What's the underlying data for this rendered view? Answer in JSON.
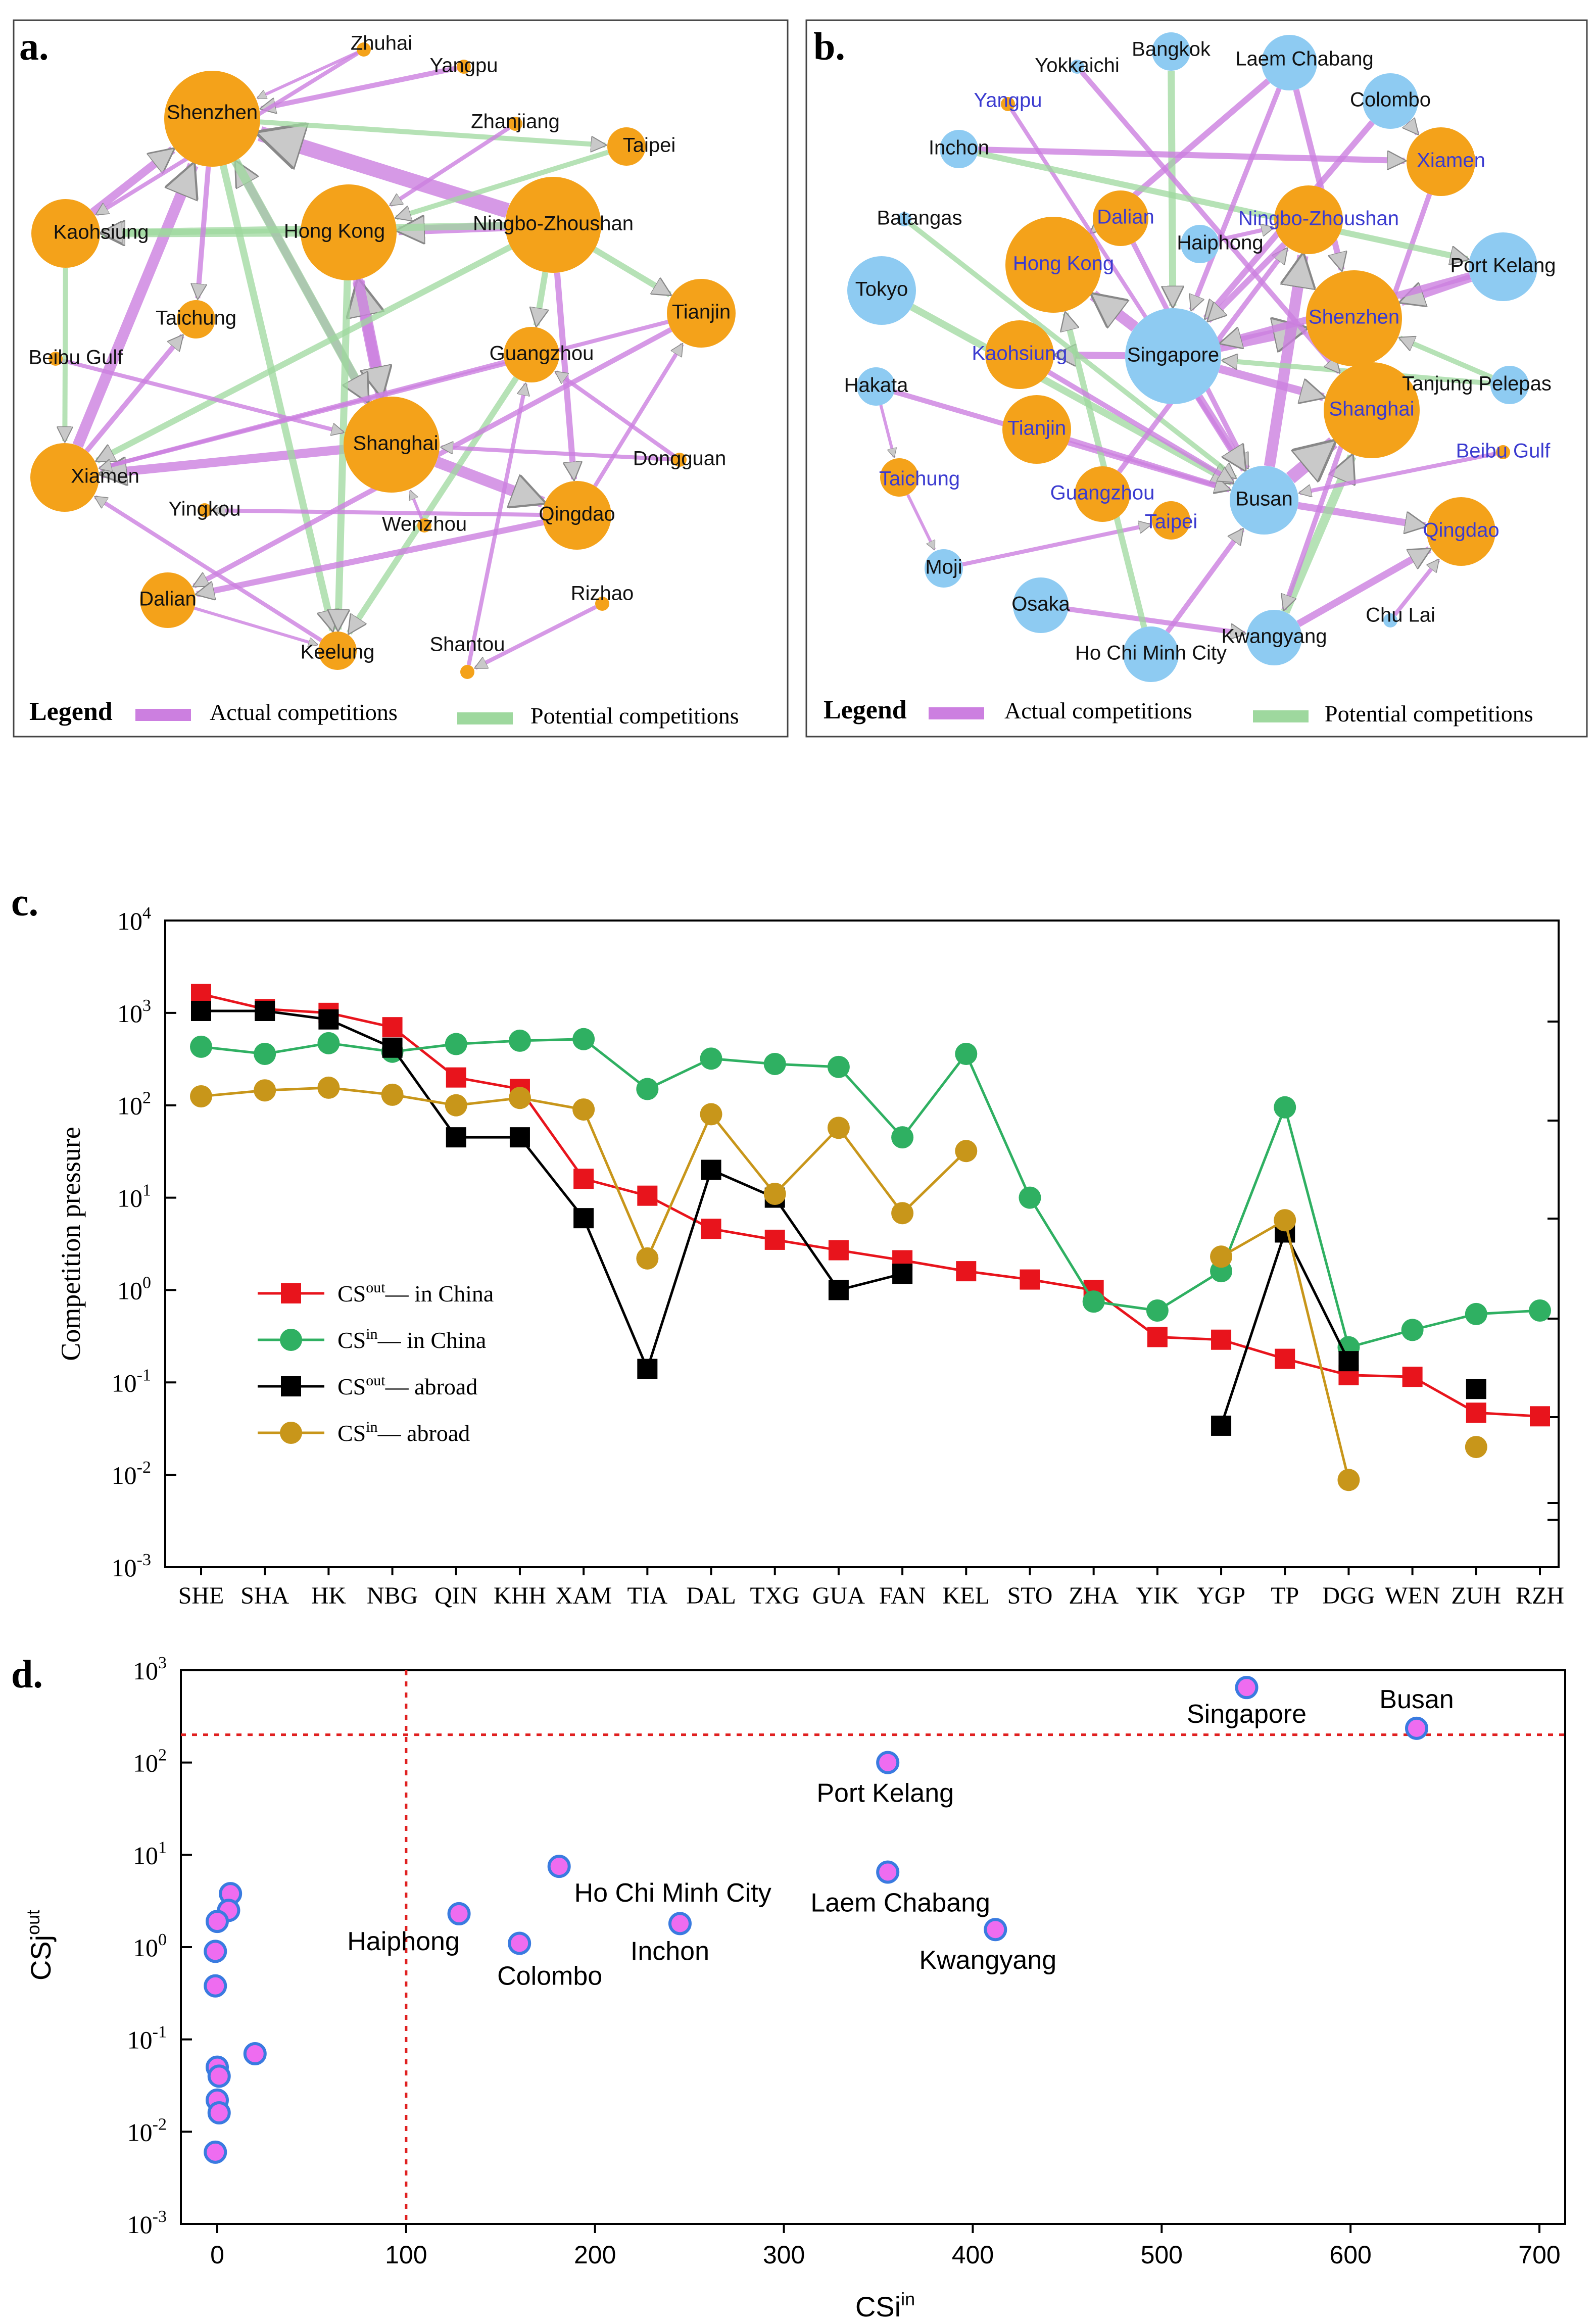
{
  "colors": {
    "actual": "#cc7fe0",
    "potential": "#9ed89e",
    "china_node": "#f4a21a",
    "abroad_node": "#8ecbf2",
    "red": "#e8141c",
    "green": "#2fb062",
    "black": "#000000",
    "gold": "#c8961a",
    "guide": "#e02020",
    "blue_label": "#3b3bd0"
  },
  "panel_a": {
    "letter": "a.",
    "legend": {
      "title": "Legend",
      "actual": "Actual competitions",
      "potential": "Potential competitions"
    },
    "nodes": [
      {
        "id": "shenzhen",
        "label": "Shenzhen",
        "size": 5
      },
      {
        "id": "hongkong",
        "label": "Hong Kong",
        "size": 5
      },
      {
        "id": "ningbo",
        "label": "Ningbo-Zhoushan",
        "size": 5
      },
      {
        "id": "shanghai",
        "label": "Shanghai",
        "size": 5
      },
      {
        "id": "kaohsiung",
        "label": "Kaohsiung",
        "size": 4
      },
      {
        "id": "xiamen",
        "label": "Xiamen",
        "size": 4
      },
      {
        "id": "qingdao",
        "label": "Qingdao",
        "size": 4
      },
      {
        "id": "tianjin",
        "label": "Tianjin",
        "size": 4
      },
      {
        "id": "guangzhou",
        "label": "Guangzhou",
        "size": 3
      },
      {
        "id": "dalian",
        "label": "Dalian",
        "size": 3
      },
      {
        "id": "taichung",
        "label": "Taichung",
        "size": 2
      },
      {
        "id": "keelung",
        "label": "Keelung",
        "size": 2
      },
      {
        "id": "taipei",
        "label": "Taipei",
        "size": 2
      },
      {
        "id": "zhuhai",
        "label": "Zhuhai",
        "size": 1
      },
      {
        "id": "yangpu",
        "label": "Yangpu",
        "size": 1
      },
      {
        "id": "zhanjiang",
        "label": "Zhanjiang",
        "size": 1
      },
      {
        "id": "beibu",
        "label": "Beibu Gulf",
        "size": 1
      },
      {
        "id": "dongguan",
        "label": "Dongguan",
        "size": 1
      },
      {
        "id": "yingkou",
        "label": "Yingkou",
        "size": 1
      },
      {
        "id": "wenzhou",
        "label": "Wenzhou",
        "size": 1
      },
      {
        "id": "rizhao",
        "label": "Rizhao",
        "size": 1
      },
      {
        "id": "shantou",
        "label": "Shantou",
        "size": 1
      }
    ]
  },
  "panel_b": {
    "letter": "b.",
    "legend": {
      "title": "Legend",
      "actual": "Actual competitions",
      "potential": "Potential competitions"
    },
    "nodes": [
      {
        "id": "bangkok",
        "label": "Bangkok",
        "type": "abroad",
        "size": 2
      },
      {
        "id": "laem",
        "label": "Laem Chabang",
        "type": "abroad",
        "size": 3
      },
      {
        "id": "yokkaichi",
        "label": "Yokkaichi",
        "type": "abroad",
        "size": 1
      },
      {
        "id": "colombo",
        "label": "Colombo",
        "type": "abroad",
        "size": 3
      },
      {
        "id": "yangpu",
        "label": "Yangpu",
        "type": "china",
        "size": 1
      },
      {
        "id": "inchon",
        "label": "Inchon",
        "type": "abroad",
        "size": 2
      },
      {
        "id": "xiamen",
        "label": "Xiamen",
        "type": "china",
        "size": 4
      },
      {
        "id": "batangas",
        "label": "Batangas",
        "type": "abroad",
        "size": 1
      },
      {
        "id": "dalian",
        "label": "Dalian",
        "type": "china",
        "size": 3
      },
      {
        "id": "ningbo",
        "label": "Ningbo-Zhoushan",
        "type": "china",
        "size": 4
      },
      {
        "id": "haiphong",
        "label": "Haiphong",
        "type": "abroad",
        "size": 2
      },
      {
        "id": "hongkong",
        "label": "Hong Kong",
        "type": "china",
        "size": 5
      },
      {
        "id": "portkelang",
        "label": "Port Kelang",
        "type": "abroad",
        "size": 4
      },
      {
        "id": "tokyo",
        "label": "Tokyo",
        "type": "abroad",
        "size": 4
      },
      {
        "id": "shenzhen",
        "label": "Shenzhen",
        "type": "china",
        "size": 5
      },
      {
        "id": "kaohsiung",
        "label": "Kaohsiung",
        "type": "china",
        "size": 4
      },
      {
        "id": "singapore",
        "label": "Singapore",
        "type": "abroad",
        "size": 5
      },
      {
        "id": "tanjung",
        "label": "Tanjung Pelepas",
        "type": "abroad",
        "size": 2
      },
      {
        "id": "hakata",
        "label": "Hakata",
        "type": "abroad",
        "size": 2
      },
      {
        "id": "tianjin",
        "label": "Tianjin",
        "type": "china",
        "size": 4
      },
      {
        "id": "shanghai",
        "label": "Shanghai",
        "type": "china",
        "size": 5
      },
      {
        "id": "beibu",
        "label": "Beibu Gulf",
        "type": "china",
        "size": 1
      },
      {
        "id": "taichung",
        "label": "Taichung",
        "type": "china",
        "size": 2
      },
      {
        "id": "guangzhou",
        "label": "Guangzhou",
        "type": "china",
        "size": 3
      },
      {
        "id": "busan",
        "label": "Busan",
        "type": "abroad",
        "size": 4
      },
      {
        "id": "taipei",
        "label": "Taipei",
        "type": "china",
        "size": 2
      },
      {
        "id": "qingdao",
        "label": "Qingdao",
        "type": "china",
        "size": 4
      },
      {
        "id": "moji",
        "label": "Moji",
        "type": "abroad",
        "size": 2
      },
      {
        "id": "osaka",
        "label": "Osaka",
        "type": "abroad",
        "size": 3
      },
      {
        "id": "chulai",
        "label": "Chu Lai",
        "type": "abroad",
        "size": 1
      },
      {
        "id": "hochiminh",
        "label": "Ho Chi Minh City",
        "type": "abroad",
        "size": 3
      },
      {
        "id": "kwangyang",
        "label": "Kwangyang",
        "type": "abroad",
        "size": 3
      }
    ]
  },
  "chart_data": [
    {
      "panel": "c.",
      "type": "line",
      "xlabel": "",
      "ylabel": "Competition pressure",
      "yscale": "log",
      "ylim": [
        0.001,
        10000
      ],
      "ytick_labels": [
        "10",
        "10",
        "10",
        "10",
        "10",
        "10",
        "10",
        "10"
      ],
      "ytick_exponents": [
        "-3",
        "-2",
        "-1",
        "0",
        "1",
        "2",
        "3",
        "4"
      ],
      "categories": [
        "SHE",
        "SHA",
        "HK",
        "NBG",
        "QIN",
        "KHH",
        "XAM",
        "TIA",
        "DAL",
        "TXG",
        "GUA",
        "FAN",
        "KEL",
        "STO",
        "ZHA",
        "YIK",
        "YGP",
        "TP",
        "DGG",
        "WEN",
        "ZUH",
        "RZH"
      ],
      "series": [
        {
          "name": "CS out — in China",
          "label_base": "CS",
          "label_sup": "out",
          "label_rest": "— in China",
          "color_key": "red",
          "marker": "square",
          "values": [
            1600,
            1100,
            1000,
            700,
            200,
            150,
            16,
            10.5,
            4.6,
            3.5,
            2.7,
            2.1,
            1.6,
            1.3,
            1.0,
            0.31,
            0.29,
            0.18,
            0.12,
            0.115,
            0.047,
            0.043
          ]
        },
        {
          "name": "CS in — in China",
          "label_base": "CS",
          "label_sup": "in",
          "label_rest": "— in China",
          "color_key": "green",
          "marker": "circle",
          "values": [
            430,
            360,
            470,
            380,
            460,
            500,
            520,
            150,
            320,
            280,
            260,
            45,
            360,
            10,
            0.75,
            0.6,
            1.6,
            95,
            0.24,
            0.37,
            0.55,
            0.6
          ]
        },
        {
          "name": "CS out — abroad",
          "label_base": "CS",
          "label_sup": "out",
          "label_rest": "— abroad",
          "color_key": "black",
          "marker": "square",
          "values": [
            1050,
            1050,
            850,
            420,
            45,
            45,
            6,
            0.14,
            20,
            10,
            1.0,
            1.5,
            null,
            null,
            null,
            null,
            0.034,
            4.2,
            0.17,
            null,
            0.085,
            null
          ]
        },
        {
          "name": "CS in — abroad",
          "label_base": "CS",
          "label_sup": "in",
          "label_rest": "— abroad",
          "color_key": "gold",
          "marker": "circle",
          "values": [
            125,
            145,
            155,
            130,
            100,
            120,
            90,
            2.2,
            80,
            11,
            57,
            6.8,
            32,
            null,
            null,
            null,
            2.3,
            5.7,
            0.0088,
            null,
            0.02,
            null
          ]
        }
      ]
    },
    {
      "panel": "d.",
      "type": "scatter",
      "xlabel": "CSi",
      "xlabel_sup": "in",
      "ylabel": "CSj",
      "ylabel_sup": "out",
      "yscale": "log",
      "xlim": [
        -20,
        700
      ],
      "ylim": [
        0.001,
        1000
      ],
      "x_ticks": [
        0,
        100,
        200,
        300,
        400,
        500,
        600,
        700
      ],
      "ytick_labels": [
        "10",
        "10",
        "10",
        "10",
        "10",
        "10",
        "10"
      ],
      "ytick_exponents": [
        "-3",
        "-2",
        "-1",
        "0",
        "1",
        "2",
        "3"
      ],
      "thresholds": {
        "x": 100,
        "y": 200
      },
      "points": [
        {
          "x": 545,
          "y": 650,
          "label": "Singapore"
        },
        {
          "x": 635,
          "y": 235,
          "label": "Busan"
        },
        {
          "x": 355,
          "y": 100,
          "label": "Port Kelang"
        },
        {
          "x": 355,
          "y": 6.5,
          "label": "Laem Chabang"
        },
        {
          "x": 412,
          "y": 1.55,
          "label": "Kwangyang"
        },
        {
          "x": 181,
          "y": 7.5,
          "label": "Ho Chi Minh City"
        },
        {
          "x": 128,
          "y": 2.3,
          "label": "Haiphong"
        },
        {
          "x": 160,
          "y": 1.1,
          "label": "Colombo"
        },
        {
          "x": 245,
          "y": 1.8,
          "label": "Inchon"
        },
        {
          "x": 7,
          "y": 3.8,
          "label": ""
        },
        {
          "x": 6,
          "y": 2.5,
          "label": ""
        },
        {
          "x": 0,
          "y": 1.9,
          "label": ""
        },
        {
          "x": -1,
          "y": 0.9,
          "label": ""
        },
        {
          "x": -1,
          "y": 0.38,
          "label": ""
        },
        {
          "x": 20,
          "y": 0.07,
          "label": ""
        },
        {
          "x": 0,
          "y": 0.05,
          "label": ""
        },
        {
          "x": 1,
          "y": 0.04,
          "label": ""
        },
        {
          "x": 0,
          "y": 0.022,
          "label": ""
        },
        {
          "x": 1,
          "y": 0.016,
          "label": ""
        },
        {
          "x": -1,
          "y": 0.006,
          "label": ""
        }
      ]
    }
  ]
}
